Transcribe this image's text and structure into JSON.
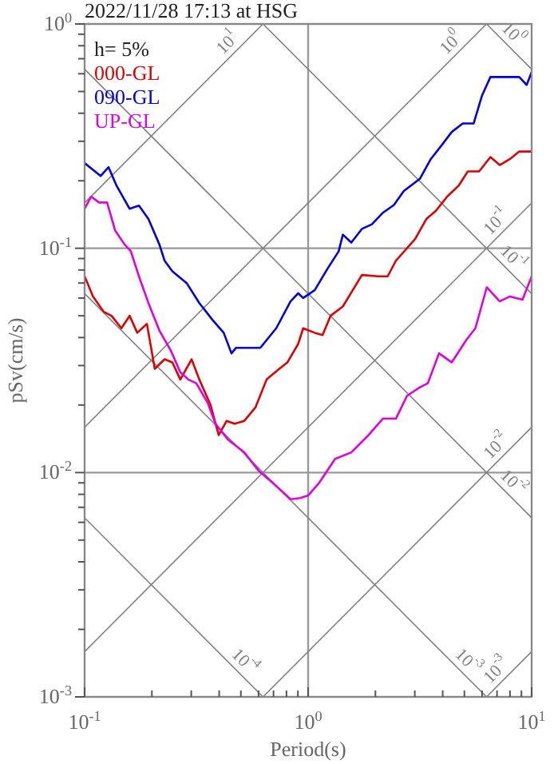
{
  "chart_data": {
    "type": "line",
    "title": "2022/11/28 17:13 at HSG",
    "xlabel": "Period(s)",
    "ylabel": "pSv(cm/s)",
    "log": "xy",
    "grid": true,
    "legend": "top left",
    "legend_title": "h= 5%",
    "xlim": [
      0.1,
      10
    ],
    "ylim": [
      0.001,
      1
    ],
    "xticks": [
      {
        "value": 0.1,
        "label": "10$^{-1}$"
      },
      {
        "value": 0.2,
        "label": null
      },
      {
        "value": 0.3,
        "label": null
      },
      {
        "value": 0.4,
        "label": null
      },
      {
        "value": 0.5,
        "label": null
      },
      {
        "value": 0.6,
        "label": null
      },
      {
        "value": 0.7,
        "label": null
      },
      {
        "value": 0.8,
        "label": null
      },
      {
        "value": 0.9,
        "label": null
      },
      {
        "value": 1,
        "label": "10$^{0}$"
      },
      {
        "value": 2,
        "label": null
      },
      {
        "value": 3,
        "label": null
      },
      {
        "value": 4,
        "label": null
      },
      {
        "value": 5,
        "label": null
      },
      {
        "value": 6,
        "label": null
      },
      {
        "value": 7,
        "label": null
      },
      {
        "value": 8,
        "label": null
      },
      {
        "value": 9,
        "label": null
      },
      {
        "value": 10,
        "label": "10$^{1}$"
      }
    ],
    "yticks": [
      {
        "value": 0.001,
        "label": "10$^{-3}$"
      },
      {
        "value": 0.002,
        "label": null
      },
      {
        "value": 0.003,
        "label": null
      },
      {
        "value": 0.004,
        "label": null
      },
      {
        "value": 0.005,
        "label": null
      },
      {
        "value": 0.006,
        "label": null
      },
      {
        "value": 0.007,
        "label": null
      },
      {
        "value": 0.008,
        "label": null
      },
      {
        "value": 0.009,
        "label": null
      },
      {
        "value": 0.01,
        "label": "10$^{-2}$"
      },
      {
        "value": 0.02,
        "label": null
      },
      {
        "value": 0.03,
        "label": null
      },
      {
        "value": 0.04,
        "label": null
      },
      {
        "value": 0.05,
        "label": null
      },
      {
        "value": 0.06,
        "label": null
      },
      {
        "value": 0.07,
        "label": null
      },
      {
        "value": 0.08,
        "label": null
      },
      {
        "value": 0.09,
        "label": null
      },
      {
        "value": 0.1,
        "label": "10$^{-1}$"
      },
      {
        "value": 0.2,
        "label": null
      },
      {
        "value": 0.3,
        "label": null
      },
      {
        "value": 0.4,
        "label": null
      },
      {
        "value": 0.5,
        "label": null
      },
      {
        "value": 0.6,
        "label": null
      },
      {
        "value": 0.7,
        "label": null
      },
      {
        "value": 0.8,
        "label": null
      },
      {
        "value": 0.9,
        "label": null
      },
      {
        "value": 1,
        "label": "10$^{0}$"
      }
    ],
    "series": [
      {
        "name": "000-GL",
        "color": "#e00000",
        "x": [
          0.1,
          0.109,
          0.122,
          0.132,
          0.146,
          0.159,
          0.172,
          0.19,
          0.206,
          0.228,
          0.247,
          0.268,
          0.301,
          0.326,
          0.366,
          0.398,
          0.432,
          0.469,
          0.518,
          0.581,
          0.652,
          0.743,
          0.808,
          0.903,
          0.95,
          1.07,
          1.16,
          1.26,
          1.43,
          1.74,
          2.06,
          2.27,
          2.47,
          3.01,
          3.38,
          3.73,
          4.19,
          4.71,
          5.18,
          5.82,
          6.54,
          7.2,
          8.0,
          8.8,
          10
        ],
        "values": [
          0.075,
          0.061,
          0.052,
          0.05,
          0.044,
          0.05,
          0.042,
          0.046,
          0.029,
          0.032,
          0.031,
          0.026,
          0.032,
          0.026,
          0.02,
          0.0147,
          0.017,
          0.0165,
          0.017,
          0.0195,
          0.026,
          0.029,
          0.031,
          0.0375,
          0.044,
          0.042,
          0.041,
          0.05,
          0.055,
          0.076,
          0.075,
          0.075,
          0.088,
          0.11,
          0.135,
          0.147,
          0.17,
          0.19,
          0.22,
          0.22,
          0.255,
          0.235,
          0.25,
          0.27,
          0.27
        ]
      },
      {
        "name": "090-GL",
        "color": "#0000e0",
        "x": [
          0.1,
          0.118,
          0.128,
          0.139,
          0.159,
          0.175,
          0.193,
          0.216,
          0.228,
          0.247,
          0.286,
          0.326,
          0.373,
          0.419,
          0.454,
          0.476,
          0.552,
          0.611,
          0.72,
          0.834,
          0.903,
          0.95,
          1.07,
          1.22,
          1.37,
          1.43,
          1.56,
          1.74,
          1.93,
          2.16,
          2.42,
          2.68,
          3.16,
          3.54,
          3.98,
          4.39,
          4.92,
          5.5,
          6.0,
          6.54,
          7.7,
          8.8,
          9.5,
          10
        ],
        "values": [
          0.24,
          0.21,
          0.23,
          0.19,
          0.15,
          0.155,
          0.135,
          0.104,
          0.088,
          0.079,
          0.07,
          0.057,
          0.048,
          0.042,
          0.034,
          0.036,
          0.036,
          0.036,
          0.044,
          0.058,
          0.063,
          0.06,
          0.065,
          0.081,
          0.097,
          0.115,
          0.106,
          0.122,
          0.128,
          0.144,
          0.156,
          0.18,
          0.204,
          0.25,
          0.29,
          0.33,
          0.36,
          0.36,
          0.48,
          0.58,
          0.58,
          0.58,
          0.535,
          0.61
        ]
      },
      {
        "name": "UP-GL",
        "color": "#e000e0",
        "x": [
          0.1,
          0.107,
          0.116,
          0.126,
          0.137,
          0.151,
          0.161,
          0.175,
          0.193,
          0.216,
          0.243,
          0.268,
          0.291,
          0.316,
          0.355,
          0.385,
          0.439,
          0.518,
          0.6,
          0.685,
          0.769,
          0.834,
          0.921,
          1.0,
          1.12,
          1.32,
          1.56,
          1.84,
          2.16,
          2.47,
          2.77,
          3.16,
          3.43,
          3.85,
          4.39,
          5.1,
          5.6,
          6.3,
          7.2,
          8.0,
          9.1,
          10
        ],
        "values": [
          0.15,
          0.17,
          0.16,
          0.16,
          0.12,
          0.104,
          0.097,
          0.075,
          0.057,
          0.043,
          0.035,
          0.028,
          0.026,
          0.025,
          0.0205,
          0.0165,
          0.014,
          0.0123,
          0.0102,
          0.0091,
          0.0082,
          0.0076,
          0.0077,
          0.0079,
          0.009,
          0.0115,
          0.0123,
          0.0145,
          0.0174,
          0.0174,
          0.022,
          0.024,
          0.025,
          0.034,
          0.031,
          0.039,
          0.044,
          0.067,
          0.058,
          0.061,
          0.059,
          0.075
        ]
      },
      {
        "type": "line",
        "name": "10$^{0}$",
        "color": "#808080",
        "x": [
          6.283,
          10
        ],
        "values": [
          1,
          0.6283
        ]
      },
      {
        "type": "line",
        "name": "10$^{-1}$",
        "color": "#808080",
        "x": [
          0.6283,
          10
        ],
        "values": [
          1,
          0.06283
        ]
      },
      {
        "type": "line",
        "name": "10$^{-2}$",
        "color": "#808080",
        "x": [
          0.1,
          10
        ],
        "values": [
          0.6283,
          0.006283
        ]
      },
      {
        "type": "line",
        "name": "10$^{-3}$",
        "color": "#808080",
        "x": [
          0.1,
          6.283
        ],
        "values": [
          0.06283,
          0.001
        ]
      },
      {
        "type": "line",
        "name": "10$^{-4}$",
        "color": "#808080",
        "x": [
          0.1,
          0.6283
        ],
        "values": [
          0.006283,
          0.001
        ]
      },
      {
        "type": "line",
        "name": "10$^{1}$",
        "color": "#808080",
        "x": [
          0.1,
          0.6283
        ],
        "values": [
          0.1592,
          1
        ]
      },
      {
        "type": "line",
        "name": "10$^{0}$",
        "color": "#808080",
        "x": [
          0.1,
          6.283
        ],
        "values": [
          0.01592,
          1
        ]
      },
      {
        "type": "line",
        "name": "10$^{-1}$",
        "color": "#808080",
        "x": [
          0.1,
          10
        ],
        "values": [
          0.001592,
          0.1592
        ]
      },
      {
        "type": "line",
        "name": "10$^{-2}$",
        "color": "#808080",
        "x": [
          0.6283,
          10
        ],
        "values": [
          0.001,
          0.01592
        ]
      },
      {
        "type": "line",
        "name": "10$^{-3}$",
        "color": "#808080",
        "x": [
          6.283,
          10
        ],
        "values": [
          0.001,
          0.001592
        ]
      }
    ]
  }
}
